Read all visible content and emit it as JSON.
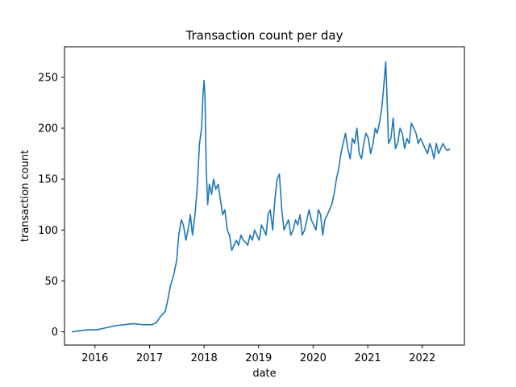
{
  "chart_data": {
    "type": "line",
    "title": "Transaction count per day",
    "xlabel": "date",
    "ylabel": "transaction count",
    "xlim": [
      "2015-06-11",
      "2022-10-10"
    ],
    "ylim": [
      -13,
      280
    ],
    "x_ticks": [
      "2016",
      "2017",
      "2018",
      "2019",
      "2020",
      "2021",
      "2022"
    ],
    "x_tick_dates": [
      "2016-01-01",
      "2017-01-01",
      "2018-01-01",
      "2019-01-01",
      "2020-01-01",
      "2021-01-01",
      "2022-01-01"
    ],
    "y_ticks": [
      0,
      50,
      100,
      150,
      200,
      250
    ],
    "grid": false,
    "series": [
      {
        "color": "#1f77b4",
        "x": [
          "2015-07-30",
          "2015-09-15",
          "2015-11-15",
          "2016-01-15",
          "2016-03-15",
          "2016-05-15",
          "2016-07-15",
          "2016-09-15",
          "2016-11-15",
          "2017-01-15",
          "2017-02-15",
          "2017-03-15",
          "2017-04-15",
          "2017-05-01",
          "2017-05-20",
          "2017-06-10",
          "2017-07-01",
          "2017-07-15",
          "2017-08-01",
          "2017-08-15",
          "2017-09-01",
          "2017-09-15",
          "2017-10-01",
          "2017-10-15",
          "2017-11-01",
          "2017-11-15",
          "2017-12-01",
          "2017-12-15",
          "2017-12-25",
          "2018-01-01",
          "2018-01-07",
          "2018-01-15",
          "2018-01-25",
          "2018-02-05",
          "2018-02-20",
          "2018-03-05",
          "2018-03-20",
          "2018-04-05",
          "2018-04-20",
          "2018-05-05",
          "2018-05-20",
          "2018-06-05",
          "2018-06-20",
          "2018-07-05",
          "2018-07-20",
          "2018-08-05",
          "2018-08-20",
          "2018-09-05",
          "2018-09-20",
          "2018-10-05",
          "2018-10-20",
          "2018-11-05",
          "2018-11-20",
          "2018-12-05",
          "2018-12-20",
          "2019-01-05",
          "2019-01-20",
          "2019-02-05",
          "2019-02-20",
          "2019-03-05",
          "2019-03-20",
          "2019-04-05",
          "2019-04-20",
          "2019-05-05",
          "2019-05-20",
          "2019-06-05",
          "2019-06-20",
          "2019-07-05",
          "2019-07-20",
          "2019-08-05",
          "2019-08-20",
          "2019-09-05",
          "2019-09-20",
          "2019-10-05",
          "2019-10-20",
          "2019-11-05",
          "2019-11-20",
          "2019-12-05",
          "2019-12-20",
          "2020-01-05",
          "2020-01-20",
          "2020-02-05",
          "2020-02-20",
          "2020-03-05",
          "2020-03-20",
          "2020-04-05",
          "2020-04-20",
          "2020-05-05",
          "2020-05-20",
          "2020-06-05",
          "2020-06-20",
          "2020-07-05",
          "2020-07-20",
          "2020-08-05",
          "2020-08-20",
          "2020-09-05",
          "2020-09-20",
          "2020-10-05",
          "2020-10-20",
          "2020-11-05",
          "2020-11-20",
          "2020-12-05",
          "2020-12-20",
          "2021-01-05",
          "2021-01-20",
          "2021-02-05",
          "2021-02-20",
          "2021-03-05",
          "2021-03-20",
          "2021-04-05",
          "2021-04-20",
          "2021-05-01",
          "2021-05-10",
          "2021-05-20",
          "2021-06-05",
          "2021-06-20",
          "2021-07-05",
          "2021-07-20",
          "2021-08-05",
          "2021-08-20",
          "2021-09-05",
          "2021-09-20",
          "2021-10-05",
          "2021-10-20",
          "2021-11-05",
          "2021-11-20",
          "2021-12-05",
          "2021-12-20",
          "2022-01-05",
          "2022-01-20",
          "2022-02-05",
          "2022-02-20",
          "2022-03-05",
          "2022-03-20",
          "2022-04-05",
          "2022-04-20",
          "2022-05-05",
          "2022-05-20",
          "2022-06-05",
          "2022-06-20",
          "2022-07-05"
        ],
        "y": [
          0,
          1,
          2,
          2,
          4,
          6,
          7,
          8,
          7,
          7,
          9,
          15,
          20,
          30,
          45,
          55,
          70,
          95,
          110,
          105,
          90,
          100,
          115,
          95,
          115,
          140,
          185,
          200,
          235,
          247,
          230,
          160,
          125,
          145,
          135,
          150,
          140,
          145,
          130,
          115,
          120,
          100,
          95,
          80,
          85,
          90,
          85,
          95,
          90,
          88,
          85,
          95,
          90,
          100,
          95,
          90,
          105,
          100,
          95,
          115,
          120,
          100,
          130,
          150,
          155,
          120,
          100,
          105,
          110,
          95,
          100,
          110,
          105,
          115,
          95,
          100,
          110,
          120,
          110,
          105,
          100,
          120,
          115,
          95,
          110,
          115,
          120,
          125,
          135,
          150,
          160,
          175,
          185,
          195,
          180,
          170,
          190,
          185,
          200,
          175,
          170,
          185,
          195,
          190,
          175,
          185,
          200,
          195,
          205,
          220,
          245,
          265,
          230,
          185,
          190,
          210,
          180,
          185,
          200,
          195,
          180,
          190,
          185,
          205,
          200,
          195,
          185,
          190,
          185,
          180,
          175,
          185,
          180,
          170,
          185,
          175,
          180,
          185,
          180,
          178,
          180
        ]
      }
    ]
  }
}
